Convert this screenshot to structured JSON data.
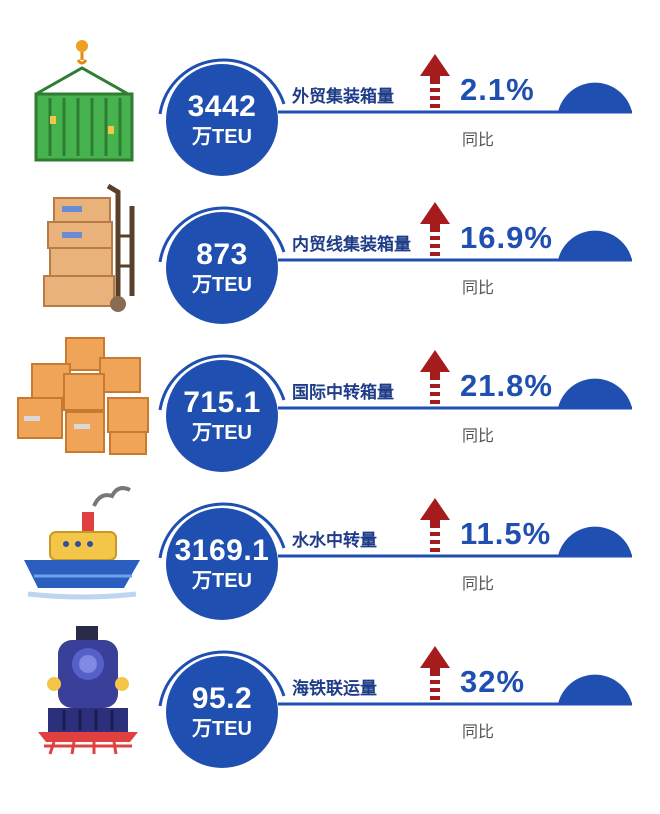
{
  "rows": [
    {
      "value": "3442",
      "unit": "万TEU",
      "label": "外贸集装箱量",
      "change": "2.1%",
      "yoy": "同比",
      "icon": "container-crane-icon"
    },
    {
      "value": "873",
      "unit": "万TEU",
      "label": "内贸线集装箱量",
      "change": "16.9%",
      "yoy": "同比",
      "icon": "hand-truck-boxes-icon"
    },
    {
      "value": "715.1",
      "unit": "万TEU",
      "label": "国际中转箱量",
      "change": "21.8%",
      "yoy": "同比",
      "icon": "stacked-boxes-icon"
    },
    {
      "value": "3169.1",
      "unit": "万TEU",
      "label": "水水中转量",
      "change": "11.5%",
      "yoy": "同比",
      "icon": "ship-icon"
    },
    {
      "value": "95.2",
      "unit": "万TEU",
      "label": "海铁联运量",
      "change": "32%",
      "yoy": "同比",
      "icon": "train-icon"
    }
  ],
  "colors": {
    "primary": "#1f4fb0",
    "arrow": "#a61b1b",
    "label": "#1f3c88"
  }
}
